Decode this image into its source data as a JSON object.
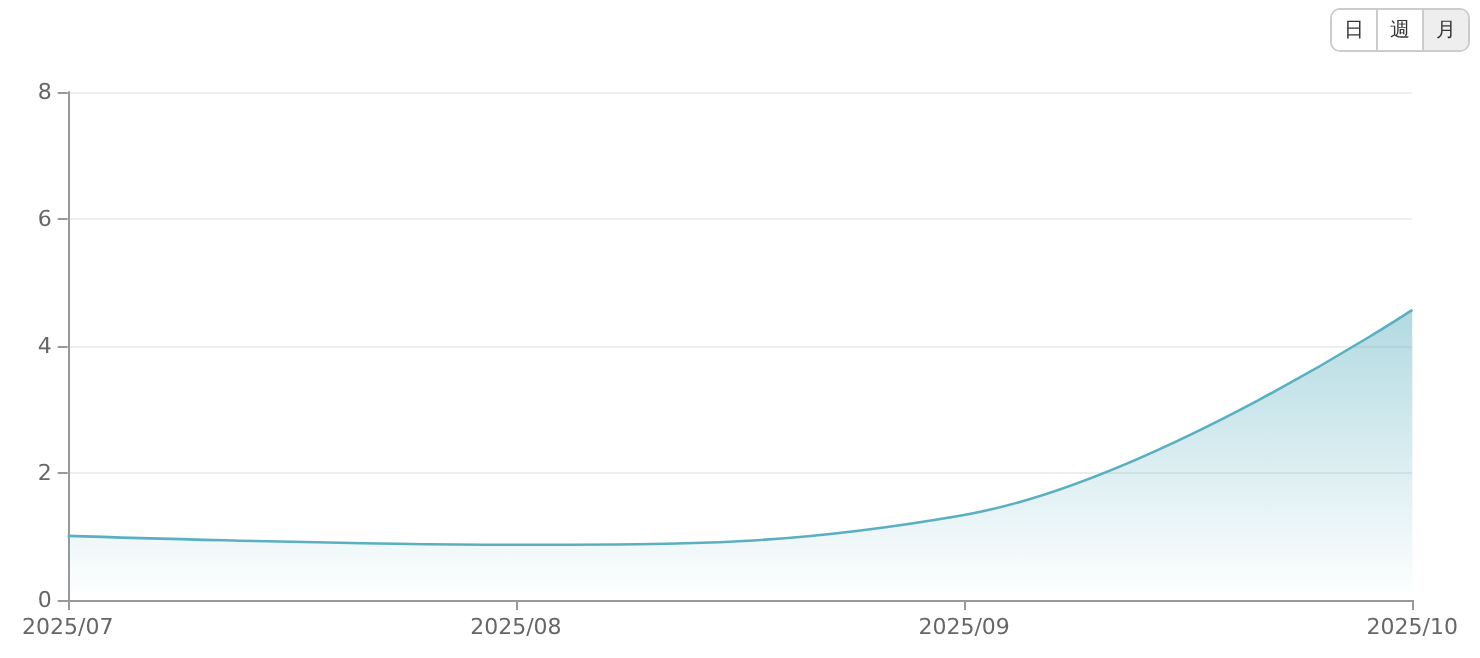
{
  "chart_data": {
    "type": "area",
    "categories": [
      "2025/07",
      "2025/08",
      "2025/09",
      "2025/10"
    ],
    "series": [
      {
        "color": "#5ab0c0",
        "values": [
          1.01,
          0.87,
          1.34,
          4.57
        ]
      }
    ],
    "ylim": [
      0,
      8
    ],
    "yticks": [
      0,
      2,
      4,
      6,
      8
    ],
    "grid": "y",
    "marker": "none",
    "line_style": "solid",
    "annotations": [
      "日",
      "週",
      "月"
    ]
  }
}
